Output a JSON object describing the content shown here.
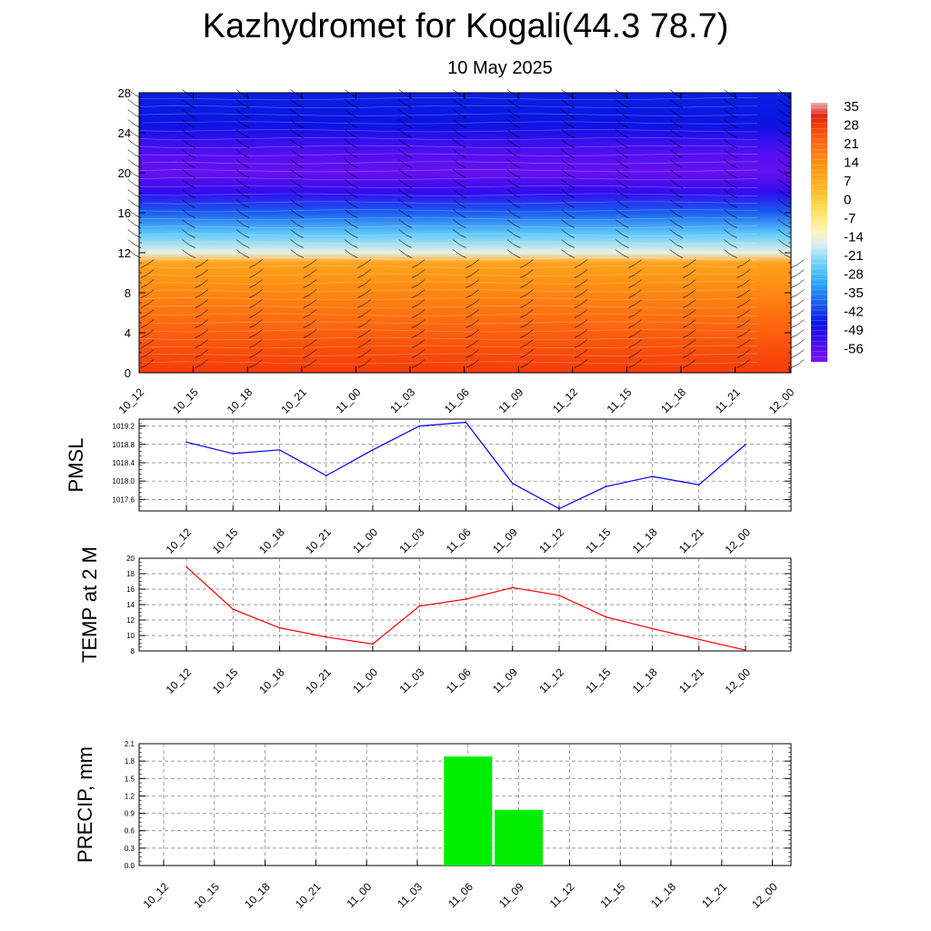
{
  "title": "Kazhydromet for Kogali(44.3 78.7)",
  "subtitle": "10 May 2025",
  "chart_data": [
    {
      "type": "heatmap",
      "name": "upper-air temperature and wind",
      "x": [
        "10_12",
        "10_15",
        "10_18",
        "10_21",
        "11_00",
        "11_03",
        "11_06",
        "11_09",
        "11_12",
        "11_15",
        "11_18",
        "11_21",
        "12_00"
      ],
      "yticks": [
        0,
        4,
        8,
        12,
        16,
        20,
        24,
        28
      ],
      "ylim": [
        0,
        28
      ],
      "colorbar_labels": [
        "35",
        "28",
        "21",
        "14",
        "7",
        "0",
        "-7",
        "-14",
        "-21",
        "-28",
        "-35",
        "-42",
        "-49",
        "-56"
      ],
      "colorbar_range": [
        -60,
        38
      ],
      "temperature_profile": [
        {
          "level": 0,
          "value": 30
        },
        {
          "level": 3,
          "value": 26
        },
        {
          "level": 6,
          "value": 21
        },
        {
          "level": 9,
          "value": 15
        },
        {
          "level": 11,
          "value": 11
        },
        {
          "level": 12,
          "value": -14
        },
        {
          "level": 14,
          "value": -25
        },
        {
          "level": 16,
          "value": -38
        },
        {
          "level": 18,
          "value": -50
        },
        {
          "level": 20,
          "value": -57
        },
        {
          "level": 22,
          "value": -55
        },
        {
          "level": 24,
          "value": -48
        },
        {
          "level": 25,
          "value": -45
        },
        {
          "level": 28,
          "value": -44
        }
      ],
      "wind_barbs": true,
      "grid": false
    },
    {
      "type": "line",
      "ylabel": "PMSL",
      "x": [
        "10_12",
        "10_15",
        "10_18",
        "10_21",
        "11_00",
        "11_03",
        "11_06",
        "11_09",
        "11_12",
        "11_15",
        "11_18",
        "11_21",
        "12_00"
      ],
      "values": [
        1018.85,
        1018.6,
        1018.68,
        1018.12,
        1018.68,
        1019.2,
        1019.28,
        1017.95,
        1017.4,
        1017.88,
        1018.1,
        1017.92,
        1018.8
      ],
      "yticks": [
        "1017.6",
        "1018.0",
        "1018.4",
        "1018.8",
        "1019.2"
      ],
      "ylim": [
        1017.35,
        1019.35
      ],
      "color": "#0000ff",
      "grid": true
    },
    {
      "type": "line",
      "ylabel": "TEMP at 2 M",
      "x": [
        "10_12",
        "10_15",
        "10_18",
        "10_21",
        "11_00",
        "11_03",
        "11_06",
        "11_09",
        "11_12",
        "11_15",
        "11_18",
        "11_21",
        "12_00"
      ],
      "values": [
        18.9,
        13.4,
        11.0,
        9.8,
        8.9,
        13.8,
        14.7,
        16.2,
        15.2,
        12.4,
        10.9,
        9.5,
        8.1
      ],
      "yticks": [
        "8",
        "10",
        "12",
        "14",
        "16",
        "18",
        "20"
      ],
      "ylim": [
        8,
        20
      ],
      "color": "#ff0000",
      "grid": true
    },
    {
      "type": "bar",
      "ylabel": "PRECIP, mm",
      "x": [
        "10_12",
        "10_15",
        "10_18",
        "10_21",
        "11_00",
        "11_03",
        "11_06",
        "11_09",
        "11_12",
        "11_15",
        "11_18",
        "11_21",
        "12_00"
      ],
      "values": [
        0,
        0,
        0,
        0,
        0,
        0,
        1.88,
        0.96,
        0,
        0,
        0,
        0,
        0
      ],
      "yticks": [
        "0.0",
        "0.3",
        "0.6",
        "0.9",
        "1.2",
        "1.5",
        "1.8",
        "2.1"
      ],
      "ylim": [
        0,
        2.1
      ],
      "color": "#00ee00",
      "grid": true
    }
  ]
}
